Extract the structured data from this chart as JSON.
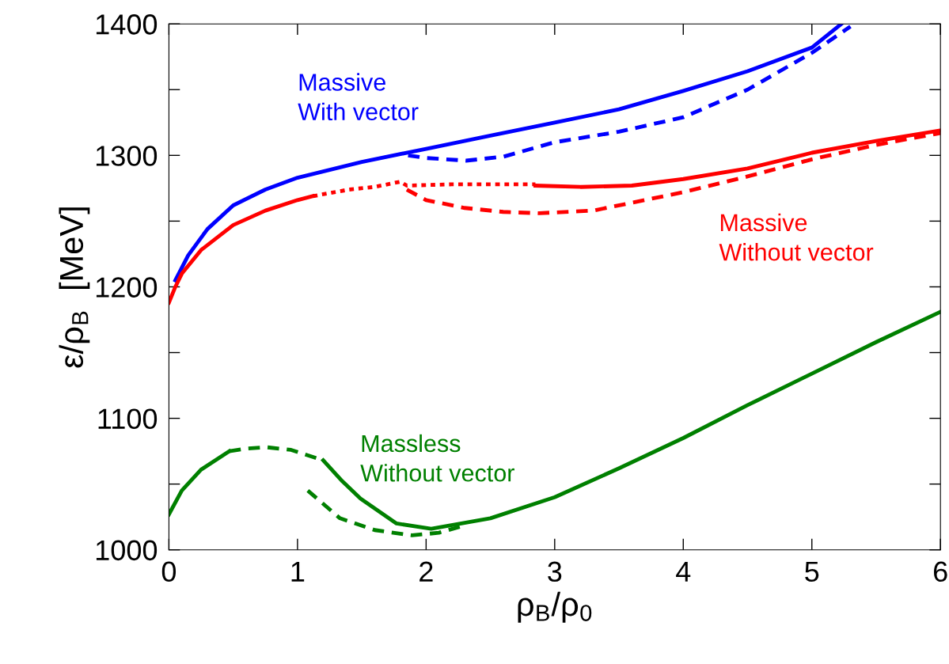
{
  "chart_data": {
    "type": "line",
    "xlabel": "ρ$_{B}$/ρ$_{0}$",
    "ylabel": "ε/ρ$_{B}$  [MeV]",
    "xlim": [
      0,
      6
    ],
    "xticks": [
      0,
      1,
      2,
      3,
      4,
      5,
      6
    ],
    "ylim": [
      1000,
      1400
    ],
    "yticks": [
      1000,
      {
        "value": 1050,
        "label": null
      },
      1100,
      {
        "value": 1150,
        "label": null
      },
      1200,
      {
        "value": 1250,
        "label": null
      },
      1300,
      {
        "value": 1350,
        "label": null
      },
      1400
    ],
    "grid": false,
    "legend": false,
    "marker": "none",
    "series": [
      {
        "color": "#0000ff",
        "line_style": "solid",
        "x": [
          0.05,
          0.15,
          0.3,
          0.5,
          0.75,
          1,
          1.5,
          2,
          2.5,
          3,
          3.5,
          4,
          4.5,
          5,
          5.23
        ],
        "values": [
          1205,
          1224,
          1244,
          1262,
          1274,
          1283,
          1295,
          1305,
          1315,
          1325,
          1335,
          1349,
          1364,
          1382,
          1400
        ]
      },
      {
        "color": "#0000ff",
        "line_style": "dashed",
        "x": [
          1.86,
          2.0,
          2.31,
          2.6,
          3,
          3.5,
          4,
          4.5,
          5,
          5.3
        ],
        "values": [
          1300,
          1298,
          1296,
          1299,
          1310,
          1318,
          1329,
          1350,
          1378,
          1398
        ]
      },
      {
        "color": "#ff0000",
        "line_style": "solid",
        "x": [
          0,
          0.05,
          0.1,
          0.25,
          0.5,
          0.75,
          1,
          1.12
        ],
        "values": [
          1188,
          1200,
          1210,
          1228,
          1247,
          1258,
          1266,
          1269
        ]
      },
      {
        "color": "#ff0000",
        "line_style": "dotted",
        "x": [
          1.12,
          1.4,
          1.6,
          1.8,
          1.85,
          2.2,
          2.6,
          2.85
        ],
        "values": [
          1269,
          1274,
          1276,
          1280,
          1277,
          1278,
          1278,
          1278
        ]
      },
      {
        "color": "#ff0000",
        "line_style": "solid",
        "x": [
          2.85,
          3.2,
          3.6,
          4,
          4.5,
          5,
          5.5,
          6
        ],
        "values": [
          1277,
          1276,
          1277,
          1282,
          1290,
          1302,
          1311,
          1319
        ]
      },
      {
        "color": "#ff0000",
        "line_style": "dashed",
        "x": [
          1.85,
          2.0,
          2.3,
          2.6,
          2.88,
          3.3,
          4,
          4.5,
          5,
          5.5,
          6
        ],
        "values": [
          1274,
          1266,
          1260,
          1257,
          1256,
          1258,
          1272,
          1284,
          1297,
          1308,
          1317
        ]
      },
      {
        "color": "#008000",
        "line_style": "solid",
        "x": [
          0,
          0.1,
          0.25,
          0.47
        ],
        "values": [
          1027,
          1045,
          1061,
          1075
        ]
      },
      {
        "color": "#008000",
        "line_style": "dashed",
        "x": [
          0.47,
          0.6,
          0.76,
          0.95,
          1.2
        ],
        "values": [
          1075,
          1077,
          1078,
          1076,
          1068
        ]
      },
      {
        "color": "#008000",
        "line_style": "solid",
        "x": [
          1.2,
          1.35,
          1.49,
          1.77,
          2.04,
          2.5,
          3,
          3.5,
          4,
          4.5,
          5,
          5.5,
          6
        ],
        "values": [
          1068,
          1052,
          1039,
          1020,
          1016,
          1024,
          1040,
          1062,
          1085,
          1110,
          1134,
          1158,
          1181
        ]
      },
      {
        "color": "#008000",
        "line_style": "dashed",
        "x": [
          1.08,
          1.33,
          1.6,
          1.89,
          2.1,
          2.28
        ],
        "values": [
          1045,
          1024,
          1015,
          1011,
          1013,
          1018
        ]
      }
    ],
    "annotations": [
      "Massive\nWith vector",
      "Massive\nWithout vector",
      "Massless\nWithout vector"
    ]
  }
}
